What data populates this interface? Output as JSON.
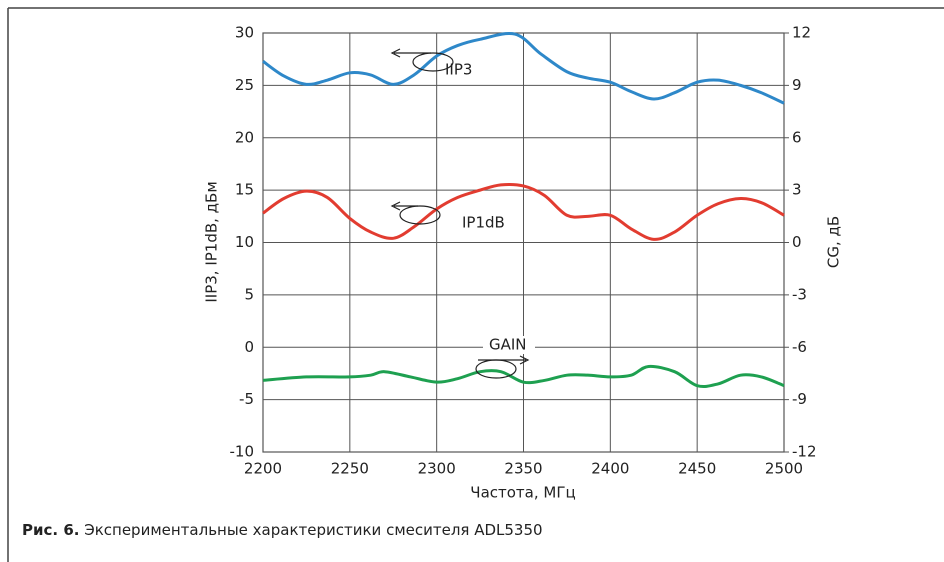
{
  "chart_data": {
    "type": "line",
    "xlabel": "Частота, МГц",
    "ylabel": "IIP3, IP1dB, дБм",
    "y2label": "CG, дБ",
    "caption_label": "Рис. 6.",
    "caption_text": "Экспериментальные характеристики смесителя ADL5350",
    "annotations": [
      "IIP3",
      "IP1dB",
      "GAIN"
    ],
    "xlim": [
      2200,
      2500
    ],
    "xticks": [
      2200,
      2250,
      2300,
      2350,
      2400,
      2450,
      2500
    ],
    "ylim": [
      -10,
      30
    ],
    "yticks": [
      -10,
      -5,
      0,
      5,
      10,
      15,
      20,
      25,
      30
    ],
    "y2lim": [
      -12,
      12
    ],
    "y2ticks": [
      -12,
      -9,
      -6,
      -3,
      0,
      3,
      6,
      9,
      12
    ],
    "grid": true,
    "series": [
      {
        "name": "IIP3",
        "color": "#2e88c9",
        "x": [
          2200,
          2212,
          2225,
          2237,
          2250,
          2262,
          2275,
          2287,
          2300,
          2312,
          2325,
          2345,
          2360,
          2375,
          2387,
          2400,
          2412,
          2425,
          2437,
          2450,
          2462,
          2475,
          2487,
          2500
        ],
        "values": [
          27.3,
          25.9,
          25.1,
          25.5,
          26.2,
          26.0,
          25.1,
          26.0,
          27.8,
          28.8,
          29.4,
          29.9,
          28.0,
          26.3,
          25.7,
          25.3,
          24.4,
          23.7,
          24.3,
          25.3,
          25.5,
          25.0,
          24.3,
          23.3
        ]
      },
      {
        "name": "IP1dB",
        "color": "#e23c30",
        "x": [
          2200,
          2212,
          2225,
          2237,
          2250,
          2262,
          2275,
          2287,
          2300,
          2312,
          2325,
          2337,
          2350,
          2362,
          2375,
          2387,
          2400,
          2412,
          2425,
          2437,
          2450,
          2462,
          2475,
          2487,
          2500
        ],
        "values": [
          12.8,
          14.2,
          14.9,
          14.3,
          12.3,
          11.0,
          10.4,
          11.5,
          13.2,
          14.3,
          15.0,
          15.5,
          15.4,
          14.5,
          12.6,
          12.5,
          12.6,
          11.3,
          10.3,
          11.0,
          12.6,
          13.7,
          14.2,
          13.8,
          12.6
        ]
      },
      {
        "name": "GAIN",
        "color": "#1ea050",
        "axis": "y2",
        "x": [
          2200,
          2225,
          2250,
          2262,
          2270,
          2285,
          2300,
          2312,
          2325,
          2337,
          2350,
          2362,
          2375,
          2387,
          2400,
          2412,
          2422,
          2437,
          2450,
          2462,
          2475,
          2487,
          2500
        ],
        "values": [
          -7.9,
          -7.7,
          -7.7,
          -7.6,
          -7.4,
          -7.7,
          -8.0,
          -7.8,
          -7.4,
          -7.4,
          -8.0,
          -7.9,
          -7.6,
          -7.6,
          -7.7,
          -7.6,
          -7.1,
          -7.4,
          -8.2,
          -8.1,
          -7.6,
          -7.7,
          -8.2
        ]
      }
    ]
  }
}
